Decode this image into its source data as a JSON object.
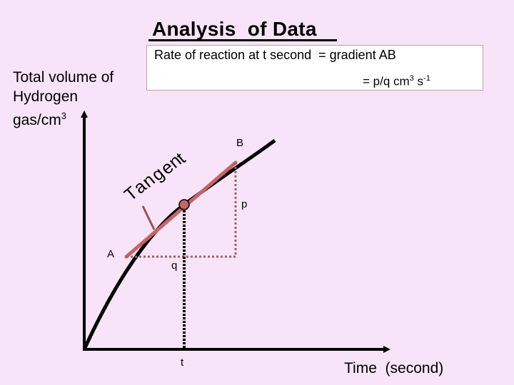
{
  "title": "Analysis  of Data",
  "formula": {
    "line1": "Rate of reaction at t second  = gradient AB",
    "line2_prefix": "= p/q cm",
    "line2_exp1": "3",
    "line2_mid": " s",
    "line2_exp2": "-1"
  },
  "y_axis_label": {
    "line1": "Total volume of",
    "line2": "Hydrogen",
    "line3_prefix": "gas/cm",
    "line3_exp": "3"
  },
  "x_axis_label": "Time  (second)",
  "labels": {
    "A": "A",
    "B": "B",
    "p": "p",
    "q": "q",
    "t": "t"
  },
  "tangent_word": [
    "T",
    "a",
    "n",
    "g",
    "e",
    "n",
    "t"
  ],
  "colors": {
    "background": "#f8e4f8",
    "tangent": "#c86464",
    "pointer": "#a05050",
    "curve": "#000000",
    "point": "#c86464",
    "dotted_guide": "#a06060"
  }
}
